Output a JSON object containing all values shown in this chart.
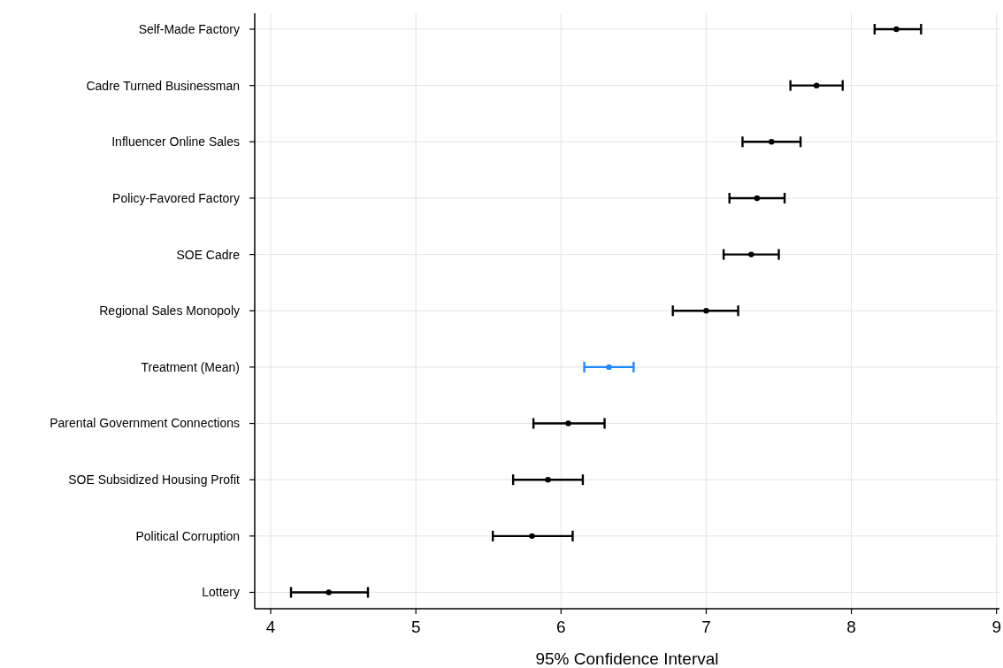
{
  "chart_data": {
    "type": "scatter",
    "orientation": "horizontal",
    "xlabel": "95% Confidence Interval",
    "categories": [
      "Self-Made Factory",
      "Cadre Turned Businessman",
      "Influencer Online Sales",
      "Policy-Favored Factory",
      "SOE Cadre",
      "Regional Sales Monopoly",
      "Treatment (Mean)",
      "Parental Government Connections",
      "SOE Subsidized Housing Profit",
      "Political Corruption",
      "Lottery"
    ],
    "values": [
      8.31,
      7.76,
      7.45,
      7.35,
      7.31,
      7.0,
      6.33,
      6.05,
      5.91,
      5.8,
      4.4
    ],
    "errors": [
      [
        8.16,
        8.48
      ],
      [
        7.58,
        7.94
      ],
      [
        7.25,
        7.65
      ],
      [
        7.16,
        7.54
      ],
      [
        7.12,
        7.5
      ],
      [
        6.77,
        7.22
      ],
      [
        6.16,
        6.5
      ],
      [
        5.81,
        6.3
      ],
      [
        5.67,
        6.15
      ],
      [
        5.53,
        6.08
      ],
      [
        4.14,
        4.67
      ]
    ],
    "colors": [
      "#000000",
      "#000000",
      "#000000",
      "#000000",
      "#000000",
      "#000000",
      "#1e88ff",
      "#000000",
      "#000000",
      "#000000",
      "#000000"
    ],
    "xlim": [
      3.89,
      9.02
    ],
    "xticks": [
      4,
      5,
      6,
      7,
      8,
      9
    ],
    "grid": true,
    "marker": "circle"
  }
}
